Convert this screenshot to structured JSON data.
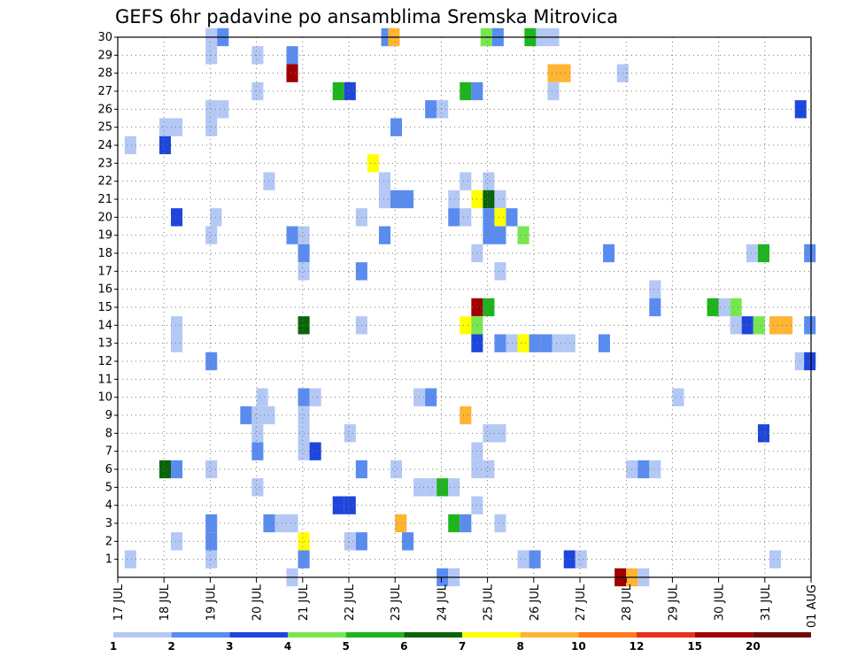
{
  "chart_data": {
    "type": "heatmap",
    "title": "GEFS 6hr padavine po ansamblima Sremska Mitrovica",
    "xlabel": "",
    "ylabel": "",
    "x_ticks": [
      "17 JUL",
      "18 JUL",
      "19 JUL",
      "20 JUL",
      "21 JUL",
      "22 JUL",
      "23 JUL",
      "24 JUL",
      "25 JUL",
      "26 JUL",
      "27 JUL",
      "28 JUL",
      "29 JUL",
      "30 JUL",
      "31 JUL",
      "01 AUG"
    ],
    "y_ticks": [
      1,
      2,
      3,
      4,
      5,
      6,
      7,
      8,
      9,
      10,
      11,
      12,
      13,
      14,
      15,
      16,
      17,
      18,
      19,
      20,
      21,
      22,
      23,
      24,
      25,
      26,
      27,
      28,
      29,
      30
    ],
    "x_range_days": [
      0,
      15
    ],
    "y_range_members": [
      0,
      30
    ],
    "time_step_hours": 6,
    "grid": "dotted",
    "colorbar": {
      "position": "bottom",
      "levels": [
        "1",
        "2",
        "3",
        "4",
        "5",
        "6",
        "7",
        "8",
        "10",
        "12",
        "15",
        "20"
      ],
      "colors": [
        "#b4c8f5",
        "#5a8cf0",
        "#1e46dc",
        "#78e650",
        "#1eb41e",
        "#0a640a",
        "#ffff00",
        "#ffb432",
        "#ff781e",
        "#e6321e",
        "#a00000",
        "#6e0a0a"
      ]
    },
    "cells_note": "each cell: [member, day_start, class_index] ; class index into colorbar.colors",
    "cells": [
      [
        30,
        1.9,
        0
      ],
      [
        30,
        2.15,
        1
      ],
      [
        30,
        5.7,
        1
      ],
      [
        30,
        5.85,
        7
      ],
      [
        30,
        7.85,
        3
      ],
      [
        30,
        8.1,
        1
      ],
      [
        30,
        8.8,
        4
      ],
      [
        30,
        9.05,
        0
      ],
      [
        30,
        9.3,
        0
      ],
      [
        29,
        1.9,
        0
      ],
      [
        29,
        2.9,
        0
      ],
      [
        29,
        3.65,
        1
      ],
      [
        28,
        3.65,
        10
      ],
      [
        28,
        9.3,
        7
      ],
      [
        28,
        9.55,
        7
      ],
      [
        28,
        10.8,
        0
      ],
      [
        27,
        2.9,
        0
      ],
      [
        27,
        4.65,
        4
      ],
      [
        27,
        4.9,
        2
      ],
      [
        27,
        7.4,
        4
      ],
      [
        27,
        7.65,
        1
      ],
      [
        27,
        9.3,
        0
      ],
      [
        26,
        1.9,
        0
      ],
      [
        26,
        2.15,
        0
      ],
      [
        26,
        6.65,
        1
      ],
      [
        26,
        6.9,
        0
      ],
      [
        26,
        14.65,
        2
      ],
      [
        25,
        0.9,
        0
      ],
      [
        25,
        1.15,
        0
      ],
      [
        25,
        1.9,
        0
      ],
      [
        25,
        5.9,
        1
      ],
      [
        24,
        0.15,
        0
      ],
      [
        24,
        0.9,
        2
      ],
      [
        23,
        5.4,
        6
      ],
      [
        22,
        3.15,
        0
      ],
      [
        22,
        5.65,
        0
      ],
      [
        22,
        7.4,
        0
      ],
      [
        22,
        7.9,
        0
      ],
      [
        21,
        5.65,
        0
      ],
      [
        21,
        5.9,
        1
      ],
      [
        21,
        6.15,
        1
      ],
      [
        21,
        7.15,
        0
      ],
      [
        21,
        7.65,
        6
      ],
      [
        21,
        7.9,
        5
      ],
      [
        21,
        8.15,
        0
      ],
      [
        20,
        1.15,
        2
      ],
      [
        20,
        2.0,
        0
      ],
      [
        20,
        5.15,
        0
      ],
      [
        20,
        7.15,
        1
      ],
      [
        20,
        7.4,
        0
      ],
      [
        20,
        7.9,
        1
      ],
      [
        20,
        8.15,
        6
      ],
      [
        20,
        8.4,
        1
      ],
      [
        19,
        1.9,
        0
      ],
      [
        19,
        3.65,
        1
      ],
      [
        19,
        3.9,
        0
      ],
      [
        19,
        5.65,
        1
      ],
      [
        19,
        7.9,
        1
      ],
      [
        19,
        8.15,
        1
      ],
      [
        19,
        8.65,
        3
      ],
      [
        18,
        3.9,
        1
      ],
      [
        18,
        7.65,
        0
      ],
      [
        18,
        10.5,
        1
      ],
      [
        18,
        13.6,
        0
      ],
      [
        18,
        13.85,
        4
      ],
      [
        18,
        14.85,
        1
      ],
      [
        17,
        3.9,
        0
      ],
      [
        17,
        5.15,
        1
      ],
      [
        17,
        8.15,
        0
      ],
      [
        16,
        11.5,
        0
      ],
      [
        15,
        7.65,
        10
      ],
      [
        15,
        7.9,
        4
      ],
      [
        15,
        11.5,
        1
      ],
      [
        15,
        12.75,
        4
      ],
      [
        15,
        13.0,
        0
      ],
      [
        15,
        13.25,
        3
      ],
      [
        14,
        1.15,
        0
      ],
      [
        14,
        3.9,
        5
      ],
      [
        14,
        5.15,
        0
      ],
      [
        14,
        7.4,
        6
      ],
      [
        14,
        7.65,
        3
      ],
      [
        14,
        13.25,
        0
      ],
      [
        14,
        13.5,
        2
      ],
      [
        14,
        13.75,
        3
      ],
      [
        14,
        14.1,
        7
      ],
      [
        14,
        14.35,
        7
      ],
      [
        14,
        14.85,
        1
      ],
      [
        13,
        1.15,
        0
      ],
      [
        13,
        7.65,
        2
      ],
      [
        13,
        8.15,
        1
      ],
      [
        13,
        8.4,
        0
      ],
      [
        13,
        8.65,
        6
      ],
      [
        13,
        8.9,
        1
      ],
      [
        13,
        9.15,
        1
      ],
      [
        13,
        9.4,
        0
      ],
      [
        13,
        9.65,
        0
      ],
      [
        13,
        10.4,
        1
      ],
      [
        12,
        1.9,
        1
      ],
      [
        12,
        14.65,
        0
      ],
      [
        12,
        14.85,
        2
      ],
      [
        10,
        3.0,
        0
      ],
      [
        10,
        3.9,
        1
      ],
      [
        10,
        4.15,
        0
      ],
      [
        10,
        6.4,
        0
      ],
      [
        10,
        6.65,
        1
      ],
      [
        10,
        12.0,
        0
      ],
      [
        9,
        2.65,
        1
      ],
      [
        9,
        2.9,
        0
      ],
      [
        9,
        3.15,
        0
      ],
      [
        9,
        3.9,
        0
      ],
      [
        9,
        7.4,
        7
      ],
      [
        8,
        2.9,
        0
      ],
      [
        8,
        3.9,
        0
      ],
      [
        8,
        4.9,
        0
      ],
      [
        8,
        7.9,
        0
      ],
      [
        8,
        8.15,
        0
      ],
      [
        8,
        13.85,
        2
      ],
      [
        7,
        2.9,
        1
      ],
      [
        7,
        3.9,
        0
      ],
      [
        7,
        4.15,
        2
      ],
      [
        7,
        7.65,
        0
      ],
      [
        6,
        0.9,
        5
      ],
      [
        6,
        1.15,
        1
      ],
      [
        6,
        1.9,
        0
      ],
      [
        6,
        5.15,
        1
      ],
      [
        6,
        5.9,
        0
      ],
      [
        6,
        7.65,
        0
      ],
      [
        6,
        7.9,
        0
      ],
      [
        6,
        11.0,
        0
      ],
      [
        6,
        11.25,
        1
      ],
      [
        6,
        11.5,
        0
      ],
      [
        5,
        2.9,
        0
      ],
      [
        5,
        6.4,
        0
      ],
      [
        5,
        6.65,
        0
      ],
      [
        5,
        6.9,
        4
      ],
      [
        5,
        7.15,
        0
      ],
      [
        4,
        4.65,
        2
      ],
      [
        4,
        4.9,
        2
      ],
      [
        4,
        7.65,
        0
      ],
      [
        3,
        1.9,
        1
      ],
      [
        3,
        3.15,
        1
      ],
      [
        3,
        3.4,
        0
      ],
      [
        3,
        3.65,
        0
      ],
      [
        3,
        6.0,
        7
      ],
      [
        3,
        7.15,
        4
      ],
      [
        3,
        7.4,
        1
      ],
      [
        3,
        8.15,
        0
      ],
      [
        2,
        1.15,
        0
      ],
      [
        2,
        1.9,
        1
      ],
      [
        2,
        3.9,
        6
      ],
      [
        2,
        4.9,
        0
      ],
      [
        2,
        5.15,
        1
      ],
      [
        2,
        6.15,
        1
      ],
      [
        1,
        0.15,
        0
      ],
      [
        1,
        1.9,
        0
      ],
      [
        1,
        3.9,
        1
      ],
      [
        1,
        8.65,
        0
      ],
      [
        1,
        8.9,
        1
      ],
      [
        1,
        9.65,
        2
      ],
      [
        1,
        9.9,
        0
      ],
      [
        1,
        14.1,
        0
      ],
      [
        0,
        3.65,
        0
      ],
      [
        0,
        6.9,
        1
      ],
      [
        0,
        7.15,
        0
      ],
      [
        0,
        10.75,
        10
      ],
      [
        0,
        11.0,
        7
      ],
      [
        0,
        11.25,
        0
      ]
    ]
  }
}
